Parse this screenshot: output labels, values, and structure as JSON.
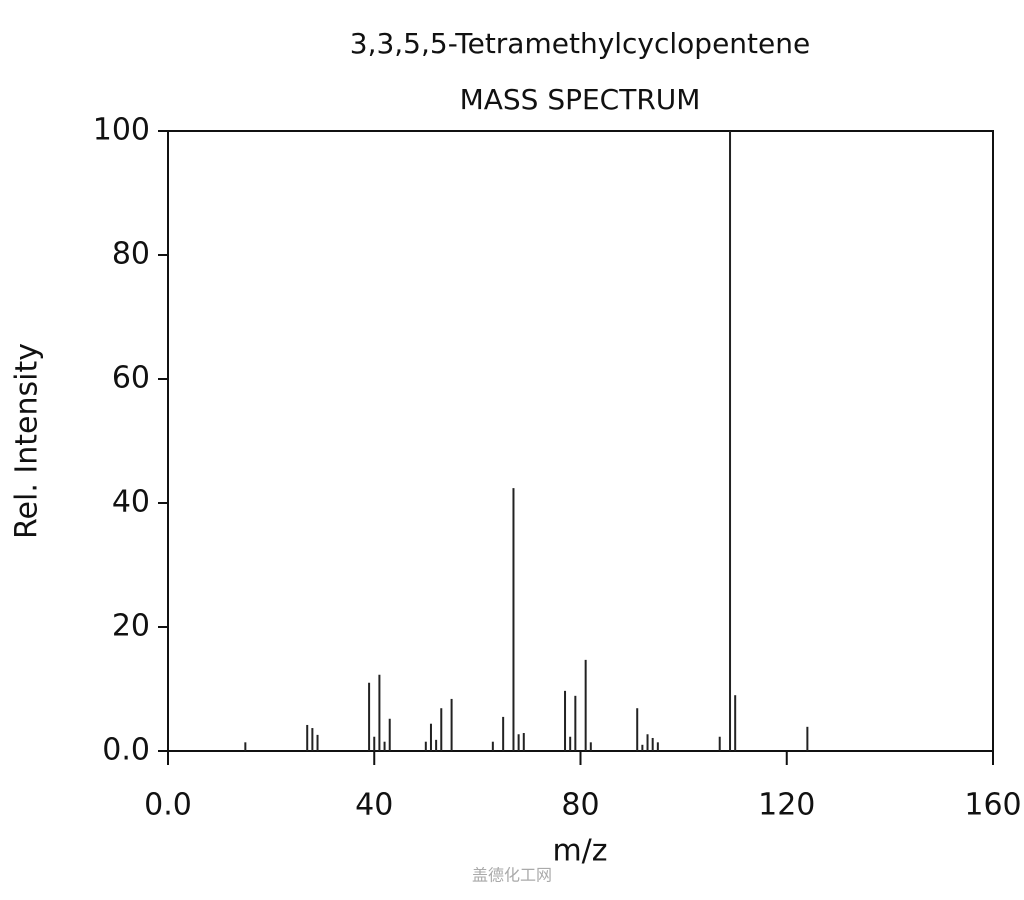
{
  "chart_data": {
    "type": "stem",
    "title": "3,3,5,5-Tetramethylcyclopentene",
    "subtitle": "MASS SPECTRUM",
    "x_label": "m/z",
    "y_label": "Rel. Intensity",
    "watermark": "盖德化工网",
    "color": "#222222",
    "x": [
      15,
      27,
      28,
      29,
      39,
      40,
      41,
      42,
      43,
      50,
      51,
      52,
      53,
      55,
      63,
      65,
      67,
      68,
      69,
      77,
      78,
      79,
      81,
      82,
      91,
      92,
      93,
      94,
      95,
      107,
      109,
      110,
      124
    ],
    "values": [
      1.4,
      4.2,
      3.7,
      2.6,
      11,
      2.3,
      12.3,
      1.5,
      5.2,
      1.5,
      4.4,
      1.8,
      6.9,
      8.4,
      1.5,
      5.5,
      42.4,
      2.7,
      2.9,
      9.7,
      2.3,
      8.9,
      14.7,
      1.4,
      6.9,
      1,
      2.7,
      2.1,
      1.4,
      2.3,
      100,
      9,
      3.9
    ],
    "xlim": [
      0,
      160
    ],
    "ylim": [
      0,
      100
    ],
    "xticks": [
      {
        "value": 0,
        "label": "0.0"
      },
      40,
      80,
      120,
      160
    ],
    "yticks": [
      {
        "value": 0,
        "label": "0.0"
      },
      20,
      40,
      60,
      80,
      100
    ]
  }
}
